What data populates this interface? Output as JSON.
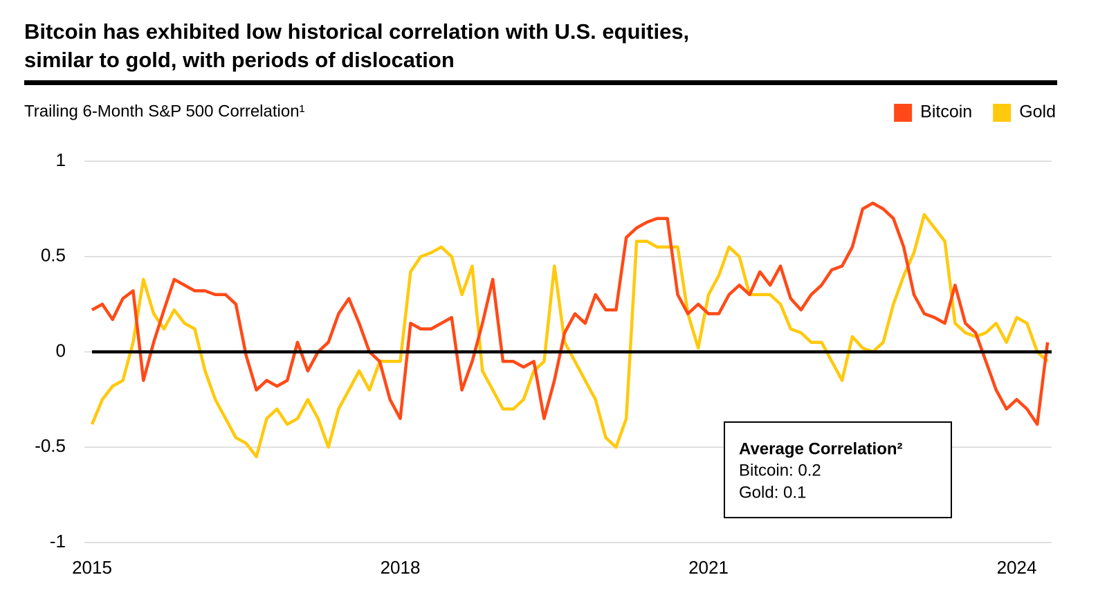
{
  "chart_data": {
    "type": "line",
    "title": [
      "Bitcoin has exhibited low historical correlation with U.S. equities,",
      "similar to gold, with periods of dislocation"
    ],
    "subtitle": "Trailing 6-Month S&P 500 Correlation¹",
    "x": [
      2015.0,
      2015.1,
      2015.2,
      2015.3,
      2015.4,
      2015.5,
      2015.6,
      2015.7,
      2015.8,
      2015.9,
      2016.0,
      2016.1,
      2016.2,
      2016.3,
      2016.4,
      2016.5,
      2016.6,
      2016.7,
      2016.8,
      2016.9,
      2017.0,
      2017.1,
      2017.2,
      2017.3,
      2017.4,
      2017.5,
      2017.6,
      2017.7,
      2017.8,
      2017.9,
      2018.0,
      2018.1,
      2018.2,
      2018.3,
      2018.4,
      2018.5,
      2018.6,
      2018.7,
      2018.8,
      2018.9,
      2019.0,
      2019.1,
      2019.2,
      2019.3,
      2019.4,
      2019.5,
      2019.6,
      2019.7,
      2019.8,
      2019.9,
      2020.0,
      2020.1,
      2020.2,
      2020.3,
      2020.4,
      2020.5,
      2020.6,
      2020.7,
      2020.8,
      2020.9,
      2021.0,
      2021.1,
      2021.2,
      2021.3,
      2021.4,
      2021.5,
      2021.6,
      2021.7,
      2021.8,
      2021.9,
      2022.0,
      2022.1,
      2022.2,
      2022.3,
      2022.4,
      2022.5,
      2022.6,
      2022.7,
      2022.8,
      2022.9,
      2023.0,
      2023.1,
      2023.2,
      2023.3,
      2023.4,
      2023.5,
      2023.6,
      2023.7,
      2023.8,
      2023.9,
      2024.0,
      2024.1,
      2024.2,
      2024.3
    ],
    "series": [
      {
        "name": "Bitcoin",
        "color": "#ff4a17",
        "values": [
          0.22,
          0.25,
          0.17,
          0.28,
          0.32,
          -0.15,
          0.05,
          0.22,
          0.38,
          0.35,
          0.32,
          0.32,
          0.3,
          0.3,
          0.25,
          -0.02,
          -0.2,
          -0.15,
          -0.18,
          -0.15,
          0.05,
          -0.1,
          0.0,
          0.05,
          0.2,
          0.28,
          0.15,
          0.0,
          -0.05,
          -0.25,
          -0.35,
          0.15,
          0.12,
          0.12,
          0.15,
          0.18,
          -0.2,
          -0.05,
          0.15,
          0.38,
          -0.05,
          -0.05,
          -0.08,
          -0.05,
          -0.35,
          -0.15,
          0.1,
          0.2,
          0.15,
          0.3,
          0.22,
          0.22,
          0.6,
          0.65,
          0.68,
          0.7,
          0.7,
          0.3,
          0.2,
          0.25,
          0.2,
          0.2,
          0.3,
          0.35,
          0.3,
          0.42,
          0.35,
          0.45,
          0.28,
          0.22,
          0.3,
          0.35,
          0.43,
          0.45,
          0.55,
          0.75,
          0.78,
          0.75,
          0.7,
          0.55,
          0.3,
          0.2,
          0.18,
          0.15,
          0.35,
          0.15,
          0.1,
          -0.05,
          -0.2,
          -0.3,
          -0.25,
          -0.3,
          -0.38,
          0.05
        ]
      },
      {
        "name": "Gold",
        "color": "#ffc90e",
        "values": [
          -0.38,
          -0.25,
          -0.18,
          -0.15,
          0.05,
          0.38,
          0.2,
          0.12,
          0.22,
          0.15,
          0.12,
          -0.1,
          -0.25,
          -0.35,
          -0.45,
          -0.48,
          -0.55,
          -0.35,
          -0.3,
          -0.38,
          -0.35,
          -0.25,
          -0.35,
          -0.5,
          -0.3,
          -0.2,
          -0.1,
          -0.2,
          -0.05,
          -0.05,
          -0.05,
          0.42,
          0.5,
          0.52,
          0.55,
          0.5,
          0.3,
          0.45,
          -0.1,
          -0.2,
          -0.3,
          -0.3,
          -0.25,
          -0.1,
          -0.05,
          0.45,
          0.05,
          -0.05,
          -0.15,
          -0.25,
          -0.45,
          -0.5,
          -0.35,
          0.58,
          0.58,
          0.55,
          0.55,
          0.55,
          0.2,
          0.02,
          0.3,
          0.4,
          0.55,
          0.5,
          0.3,
          0.3,
          0.3,
          0.25,
          0.12,
          0.1,
          0.05,
          0.05,
          -0.05,
          -0.15,
          0.08,
          0.02,
          0.0,
          0.05,
          0.25,
          0.4,
          0.52,
          0.72,
          0.65,
          0.58,
          0.15,
          0.1,
          0.08,
          0.1,
          0.15,
          0.05,
          0.18,
          0.15,
          0.0,
          -0.05
        ]
      }
    ],
    "xlim": [
      2015,
      2024.34
    ],
    "xticks": [
      2015,
      2018,
      2021,
      2024
    ],
    "ylim": [
      -1,
      1
    ],
    "yticks": [
      1,
      0.5,
      0,
      -0.5,
      -1
    ],
    "grid": true,
    "zero_line": true,
    "legend": "top-right",
    "annotation": {
      "title": "Average Correlation²",
      "lines": [
        "Bitcoin: 0.2",
        "Gold: 0.1"
      ]
    }
  }
}
